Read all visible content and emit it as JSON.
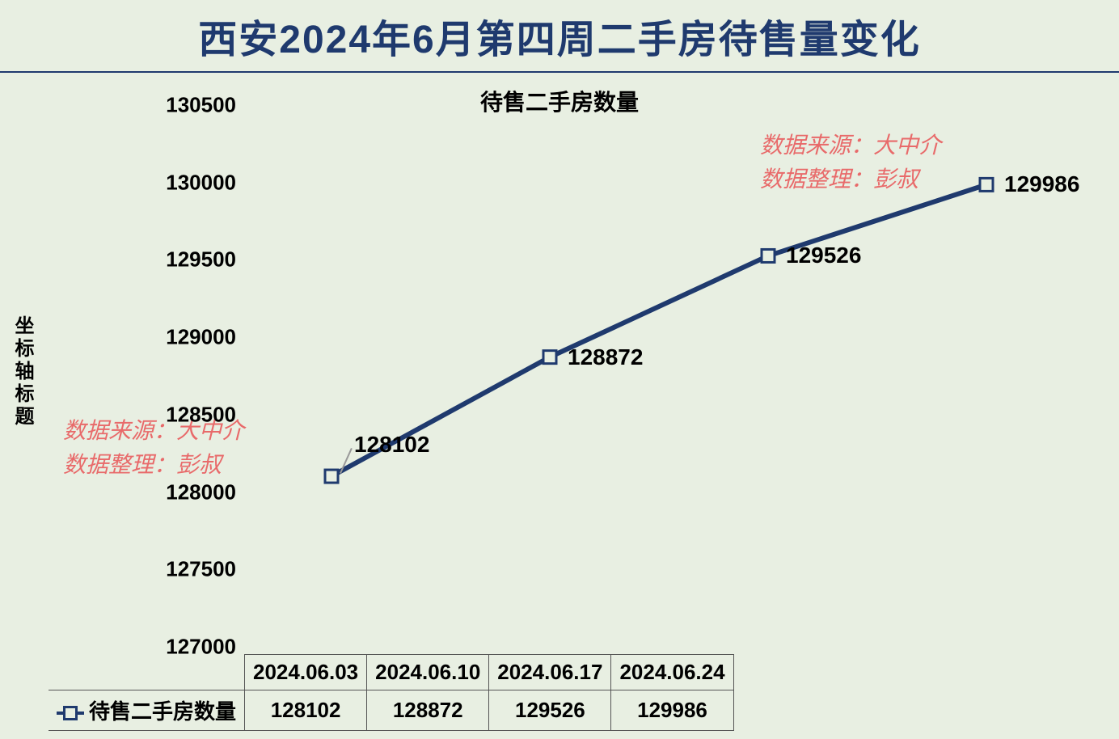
{
  "title": "西安2024年6月第四周二手房待售量变化",
  "chart": {
    "type": "line",
    "subtitle": "待售二手房数量",
    "y_axis_title": "坐标轴标题",
    "x_labels": [
      "2024.06.03",
      "2024.06.10",
      "2024.06.17",
      "2024.06.24"
    ],
    "values": [
      128102,
      128872,
      129526,
      129986
    ],
    "ylim": [
      127000,
      130500
    ],
    "ytick_step": 500,
    "yticks": [
      "127000",
      "127500",
      "128000",
      "128500",
      "129000",
      "129500",
      "130000",
      "130500"
    ],
    "line_color": "#1f3a6e",
    "line_width": 6,
    "marker_fill": "#e8efe2",
    "marker_stroke": "#1f3a6e",
    "marker_size": 10,
    "background_color": "#e8efe2",
    "title_color": "#1f3a6e",
    "title_fontsize": 48,
    "subtitle_fontsize": 28,
    "label_fontsize": 26,
    "data_label_fontsize": 28
  },
  "legend": {
    "series_name": "待售二手房数量"
  },
  "watermark": {
    "line1": "数据来源：大中介",
    "line2": "数据整理：彭叔",
    "color": "#e86a6a"
  },
  "table": {
    "columns": [
      "",
      "2024.06.03",
      "2024.06.10",
      "2024.06.17",
      "2024.06.24"
    ],
    "rows": [
      [
        "待售二手房数量",
        "128102",
        "128872",
        "129526",
        "129986"
      ]
    ]
  }
}
